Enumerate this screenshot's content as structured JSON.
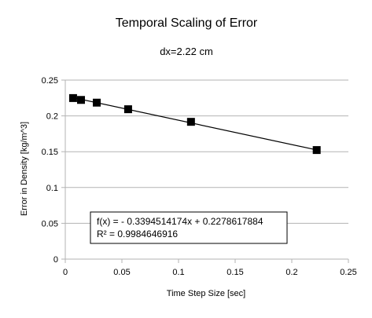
{
  "chart_data": {
    "type": "scatter",
    "title": "Temporal Scaling of Error",
    "subtitle": "dx=2.22 cm",
    "xlabel": "Time Step Size [sec]",
    "ylabel": "Error in Density  [kg/m^3]",
    "xlim": [
      0,
      0.25
    ],
    "ylim": [
      0,
      0.25
    ],
    "x_ticks": [
      "0",
      "0.05",
      "0.1",
      "0.15",
      "0.2",
      "0.25"
    ],
    "y_ticks": [
      "0",
      "0.05",
      "0.1",
      "0.15",
      "0.2",
      "0.25"
    ],
    "x_tick_values": [
      0,
      0.05,
      0.1,
      0.15,
      0.2,
      0.25
    ],
    "y_tick_values": [
      0,
      0.05,
      0.1,
      0.15,
      0.2,
      0.25
    ],
    "grid": "horizontal",
    "marker": "square",
    "series": [
      {
        "x": [
          0.0069,
          0.0139,
          0.0278,
          0.0555,
          0.111,
          0.222
        ],
        "y": [
          0.2249,
          0.2223,
          0.2185,
          0.2093,
          0.1917,
          0.1523
        ]
      }
    ],
    "trendline": {
      "type": "linear",
      "slope": -0.3394514174,
      "intercept": 0.2278617884,
      "x_range": [
        0.0069,
        0.222
      ],
      "equation": "f(x) =  - 0.3394514174x + 0.2278617884",
      "r_squared": "R² = 0.9984646916"
    }
  }
}
